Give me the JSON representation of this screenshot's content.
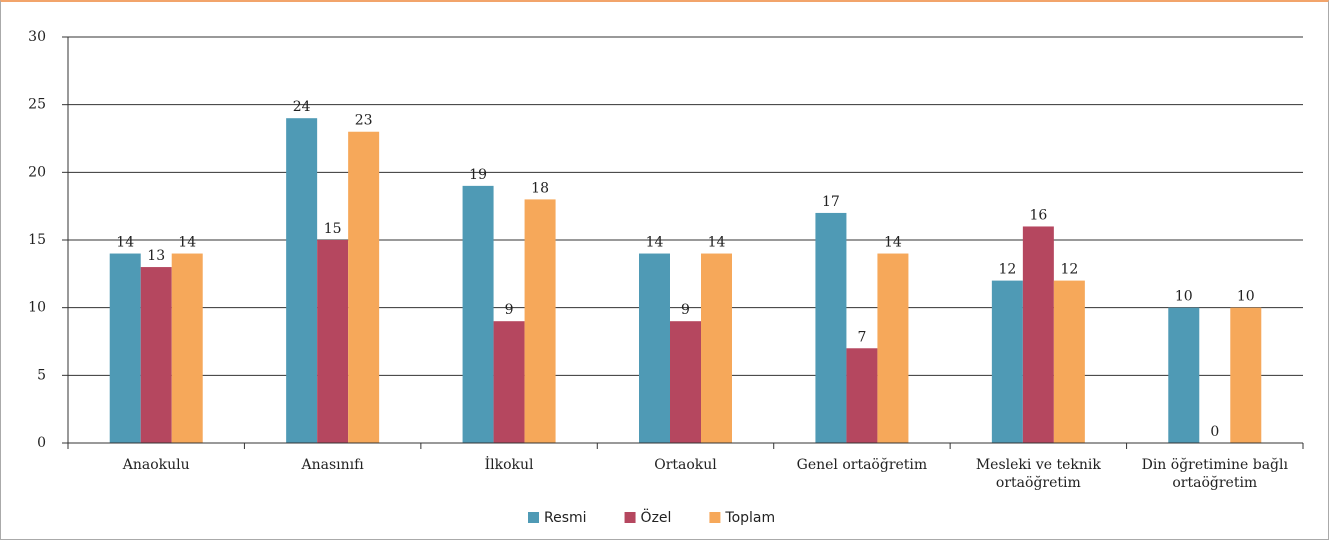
{
  "chart_data": {
    "type": "bar",
    "categories": [
      "Anaokulu",
      "Anasınıfı",
      "İlkokul",
      "Ortaokul",
      "Genel ortaöğretim",
      "Mesleki ve teknik ortaöğretim",
      "Din öğretimine bağlı ortaöğretim"
    ],
    "series": [
      {
        "name": "Resmi",
        "color": "#4f9ab5",
        "values": [
          14,
          24,
          19,
          14,
          17,
          12,
          10
        ]
      },
      {
        "name": "Özel",
        "color": "#b5475f",
        "values": [
          13,
          15,
          9,
          9,
          7,
          16,
          0
        ]
      },
      {
        "name": "Toplam",
        "color": "#f6a85a",
        "values": [
          14,
          23,
          18,
          14,
          14,
          12,
          10
        ]
      }
    ],
    "ylim": [
      0,
      30
    ],
    "yticks": [
      0,
      5,
      10,
      15,
      20,
      25,
      30
    ],
    "grid": true,
    "legend": "bottom"
  }
}
